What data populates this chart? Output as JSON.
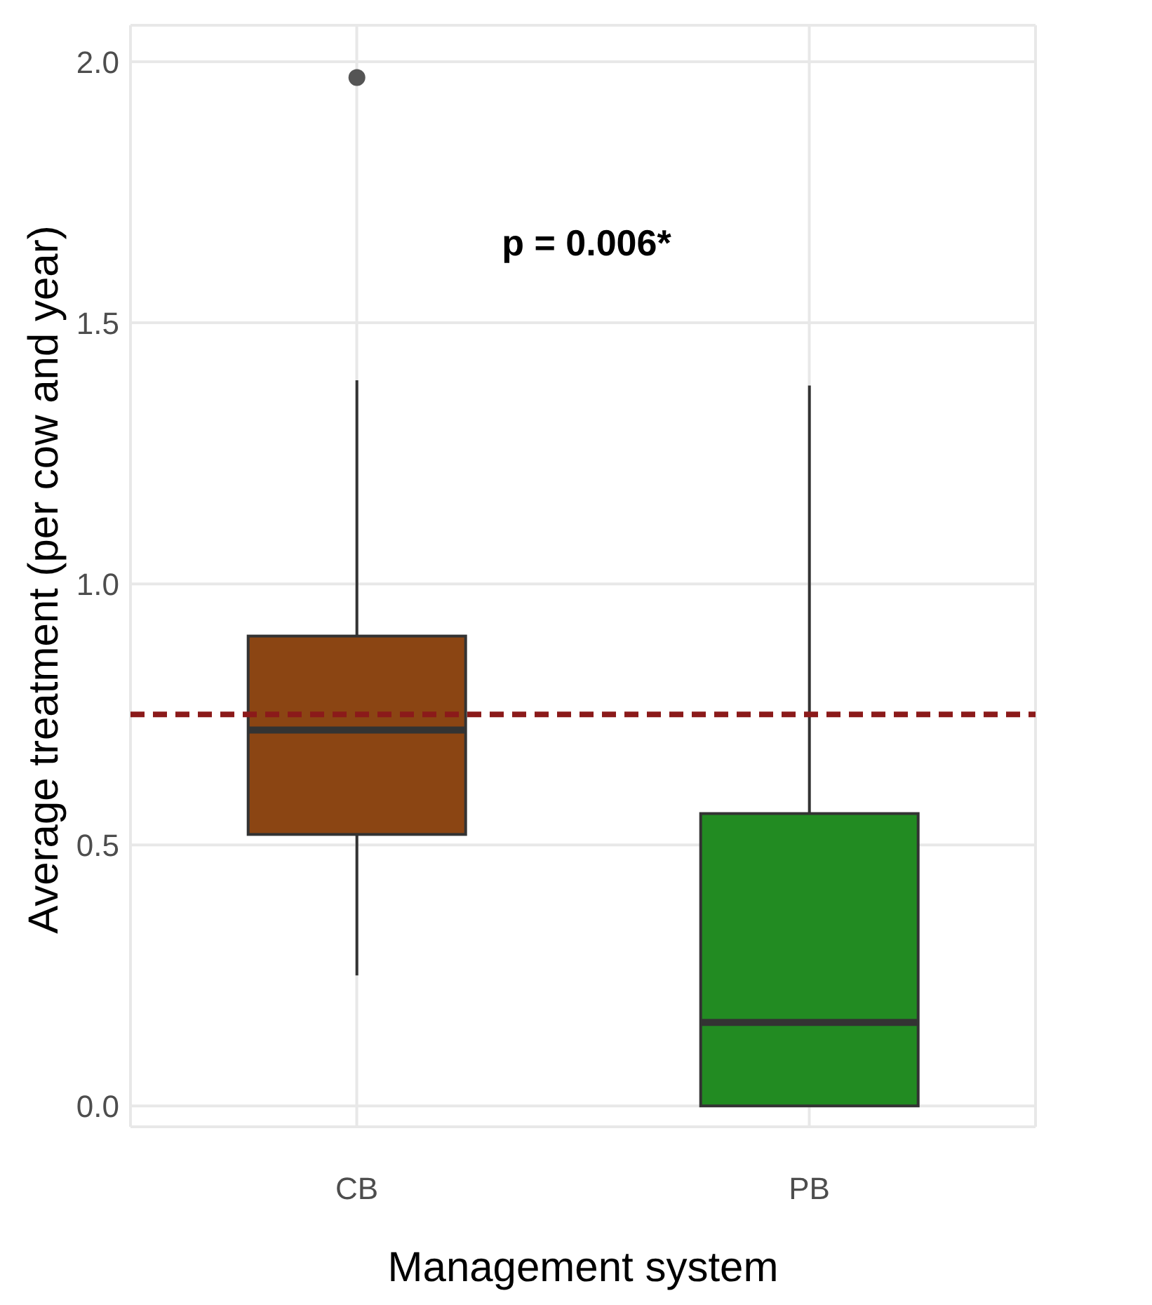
{
  "chart_data": {
    "type": "box",
    "xlabel": "Management system",
    "ylabel": "Average treatment (per cow and year)",
    "categories": [
      "CB",
      "PB"
    ],
    "colors": [
      "#8b4513",
      "#228b22"
    ],
    "boxes": [
      {
        "low": 0.25,
        "q1": 0.52,
        "median": 0.72,
        "q3": 0.9,
        "high": 1.39,
        "outliers": [
          1.97
        ]
      },
      {
        "low": 0,
        "q1": 0,
        "median": 0.16,
        "q3": 0.56,
        "high": 1.38
      }
    ],
    "ylim": [
      -0.04,
      2.07
    ],
    "yticks": [
      {
        "value": 0,
        "label": "0.0"
      },
      {
        "value": 0.5,
        "label": "0.5"
      },
      {
        "value": 1,
        "label": "1.0"
      },
      {
        "value": 1.5,
        "label": "1.5"
      },
      {
        "value": 2,
        "label": "2.0"
      }
    ],
    "grid": true,
    "ref_lines": [
      {
        "axis": "y",
        "value": 0.75,
        "color": "#8b1a1a",
        "line_style": "dashed"
      }
    ],
    "annotations": [
      "p = 0.006*"
    ]
  }
}
